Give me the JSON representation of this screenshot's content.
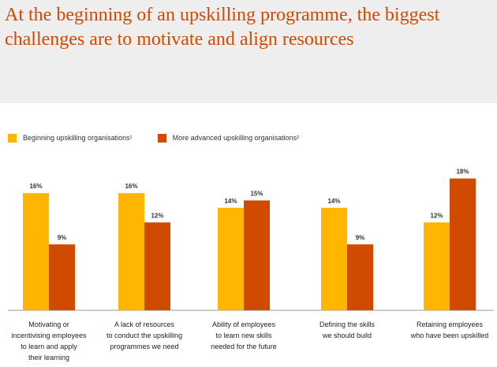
{
  "title": "At the beginning of an upskilling programme, the biggest challenges are to motivate and align resources",
  "colors": {
    "accent": "#d04a02",
    "beginning": "#ffb600",
    "advanced": "#d04a02",
    "header_bg": "#eeeeee"
  },
  "legend": {
    "items": [
      {
        "label": "Beginning upskilling organisations¹",
        "color": "#ffb600"
      },
      {
        "label": "More advanced upskilling organisations²",
        "color": "#d04a02"
      }
    ]
  },
  "chart_data": {
    "type": "bar",
    "categories": [
      "Motivating or incentivising employees to learn and apply their learning",
      "A lack of resources to conduct the upskilling programmes we need",
      "Ability of employees to learn new skills needed for the future",
      "Defining the skills we should build",
      "Retaining employees who have been upskilled"
    ],
    "series": [
      {
        "name": "Beginning upskilling organisations¹",
        "values": [
          16,
          16,
          14,
          14,
          12
        ]
      },
      {
        "name": "More advanced upskilling organisations²",
        "values": [
          9,
          12,
          15,
          9,
          18
        ]
      }
    ],
    "data_labels": [
      [
        "16%",
        "16%",
        "14%",
        "14%",
        "12%"
      ],
      [
        "9%",
        "12%",
        "15%",
        "9%",
        "18%"
      ]
    ],
    "ylim": [
      0,
      18
    ],
    "grid": false,
    "legend_position": "top-left"
  },
  "category_labels": [
    [
      "Motivating or",
      "incentivising employees",
      "to learn and apply",
      "their learning"
    ],
    [
      "A lack of resources",
      "to conduct the upskilling",
      "programmes we need"
    ],
    [
      "Ability of employees",
      "to learn new skills",
      "needed for the future"
    ],
    [
      "Defining the skills",
      "we should build"
    ],
    [
      "Retaining employees",
      "who have been upskilled"
    ]
  ]
}
